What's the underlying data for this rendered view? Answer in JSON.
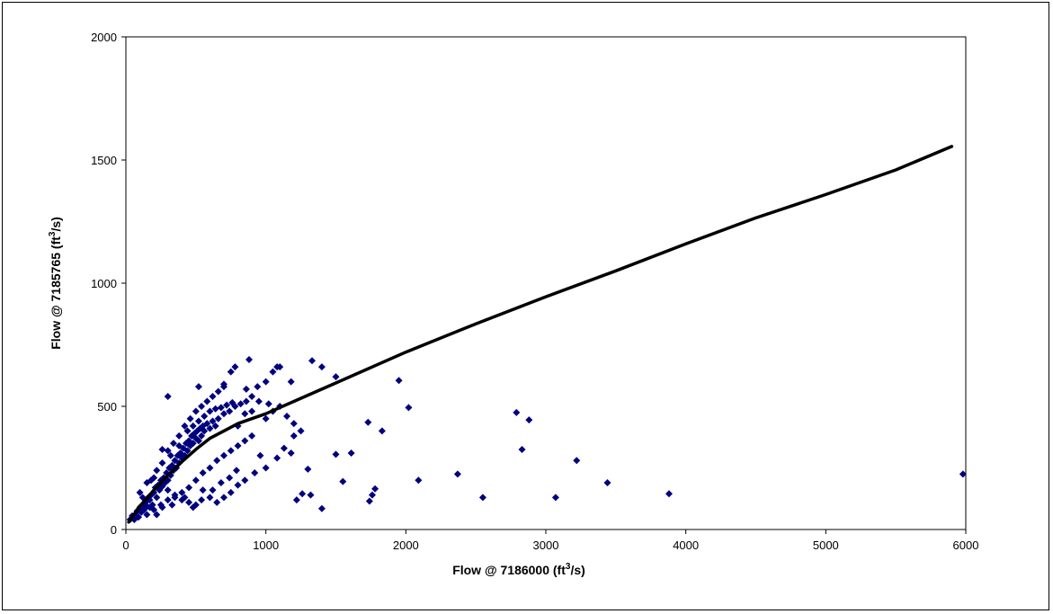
{
  "chart_data": {
    "type": "scatter",
    "title": "",
    "xlabel": {
      "before": "Flow @ 7186000 (ft",
      "sup": "3",
      "after": "/s)"
    },
    "ylabel": {
      "before": "Flow @ 7185765 (ft",
      "sup": "3",
      "after": "/s)"
    },
    "xlim": [
      0,
      6000
    ],
    "ylim": [
      0,
      2000
    ],
    "xticks": [
      0,
      1000,
      2000,
      3000,
      4000,
      5000,
      6000
    ],
    "yticks": [
      0,
      500,
      1000,
      1500,
      2000
    ],
    "grid": {
      "y_lines_at": [
        500
      ]
    },
    "legend": "none",
    "point_color": "#00007f",
    "curve_color": "#000000",
    "series": [
      {
        "kind": "points",
        "points": [
          [
            30,
            40
          ],
          [
            45,
            55
          ],
          [
            60,
            40
          ],
          [
            70,
            60
          ],
          [
            80,
            75
          ],
          [
            90,
            50
          ],
          [
            100,
            90
          ],
          [
            110,
            70
          ],
          [
            120,
            100
          ],
          [
            130,
            80
          ],
          [
            140,
            110
          ],
          [
            150,
            95
          ],
          [
            160,
            130
          ],
          [
            170,
            120
          ],
          [
            180,
            140
          ],
          [
            190,
            100
          ],
          [
            200,
            150
          ],
          [
            210,
            170
          ],
          [
            220,
            130
          ],
          [
            230,
            180
          ],
          [
            240,
            160
          ],
          [
            250,
            200
          ],
          [
            260,
            175
          ],
          [
            270,
            210
          ],
          [
            280,
            190
          ],
          [
            290,
            230
          ],
          [
            300,
            200
          ],
          [
            310,
            250
          ],
          [
            320,
            220
          ],
          [
            330,
            260
          ],
          [
            340,
            240
          ],
          [
            350,
            280
          ],
          [
            360,
            250
          ],
          [
            370,
            300
          ],
          [
            380,
            270
          ],
          [
            390,
            310
          ],
          [
            400,
            290
          ],
          [
            410,
            330
          ],
          [
            420,
            300
          ],
          [
            430,
            350
          ],
          [
            440,
            320
          ],
          [
            450,
            360
          ],
          [
            460,
            340
          ],
          [
            470,
            380
          ],
          [
            480,
            350
          ],
          [
            490,
            390
          ],
          [
            500,
            370
          ],
          [
            510,
            400
          ],
          [
            520,
            360
          ],
          [
            530,
            410
          ],
          [
            540,
            380
          ],
          [
            550,
            420
          ],
          [
            560,
            400
          ],
          [
            580,
            430
          ],
          [
            600,
            410
          ],
          [
            620,
            440
          ],
          [
            640,
            420
          ],
          [
            660,
            450
          ],
          [
            700,
            470
          ],
          [
            740,
            480
          ],
          [
            780,
            500
          ],
          [
            820,
            510
          ],
          [
            860,
            520
          ],
          [
            900,
            540
          ],
          [
            150,
            60
          ],
          [
            200,
            80
          ],
          [
            250,
            100
          ],
          [
            300,
            120
          ],
          [
            350,
            130
          ],
          [
            400,
            150
          ],
          [
            450,
            170
          ],
          [
            500,
            200
          ],
          [
            550,
            230
          ],
          [
            600,
            250
          ],
          [
            650,
            280
          ],
          [
            700,
            300
          ],
          [
            750,
            320
          ],
          [
            800,
            340
          ],
          [
            850,
            360
          ],
          [
            900,
            380
          ],
          [
            180,
            200
          ],
          [
            220,
            240
          ],
          [
            260,
            270
          ],
          [
            300,
            320
          ],
          [
            340,
            350
          ],
          [
            380,
            380
          ],
          [
            420,
            420
          ],
          [
            460,
            450
          ],
          [
            500,
            480
          ],
          [
            540,
            500
          ],
          [
            580,
            520
          ],
          [
            620,
            540
          ],
          [
            660,
            560
          ],
          [
            700,
            580
          ],
          [
            300,
            540
          ],
          [
            520,
            580
          ],
          [
            700,
            590
          ],
          [
            750,
            640
          ],
          [
            780,
            660
          ],
          [
            880,
            690
          ],
          [
            860,
            570
          ],
          [
            940,
            580
          ],
          [
            1000,
            600
          ],
          [
            1050,
            640
          ],
          [
            1100,
            660
          ],
          [
            1020,
            510
          ],
          [
            950,
            520
          ],
          [
            900,
            480
          ],
          [
            850,
            470
          ],
          [
            800,
            420
          ],
          [
            1000,
            450
          ],
          [
            1050,
            480
          ],
          [
            1100,
            500
          ],
          [
            1150,
            460
          ],
          [
            1200,
            380
          ],
          [
            1250,
            400
          ],
          [
            1180,
            310
          ],
          [
            1130,
            330
          ],
          [
            1080,
            290
          ],
          [
            1000,
            250
          ],
          [
            960,
            300
          ],
          [
            920,
            230
          ],
          [
            850,
            200
          ],
          [
            800,
            180
          ],
          [
            750,
            150
          ],
          [
            700,
            130
          ],
          [
            650,
            110
          ],
          [
            600,
            130
          ],
          [
            550,
            160
          ],
          [
            500,
            100
          ],
          [
            450,
            110
          ],
          [
            400,
            120
          ],
          [
            350,
            140
          ],
          [
            300,
            160
          ],
          [
            250,
            180
          ],
          [
            200,
            210
          ],
          [
            150,
            190
          ],
          [
            100,
            150
          ],
          [
            120,
            130
          ],
          [
            170,
            90
          ],
          [
            220,
            60
          ],
          [
            260,
            90
          ],
          [
            330,
            100
          ],
          [
            420,
            130
          ],
          [
            480,
            90
          ],
          [
            540,
            120
          ],
          [
            620,
            160
          ],
          [
            680,
            190
          ],
          [
            740,
            210
          ],
          [
            790,
            240
          ],
          [
            1330,
            685
          ],
          [
            1400,
            660
          ],
          [
            1500,
            620
          ],
          [
            1950,
            605
          ],
          [
            1180,
            600
          ],
          [
            1080,
            660
          ],
          [
            1200,
            430
          ],
          [
            1300,
            245
          ],
          [
            1320,
            140
          ],
          [
            1260,
            145
          ],
          [
            1220,
            120
          ],
          [
            1400,
            85
          ],
          [
            1500,
            305
          ],
          [
            1550,
            195
          ],
          [
            1610,
            310
          ],
          [
            1730,
            435
          ],
          [
            1760,
            140
          ],
          [
            1780,
            165
          ],
          [
            1740,
            115
          ],
          [
            1830,
            400
          ],
          [
            2020,
            495
          ],
          [
            2090,
            200
          ],
          [
            2370,
            225
          ],
          [
            2550,
            130
          ],
          [
            2790,
            475
          ],
          [
            2880,
            445
          ],
          [
            2830,
            325
          ],
          [
            3070,
            130
          ],
          [
            3220,
            280
          ],
          [
            3440,
            190
          ],
          [
            3880,
            145
          ],
          [
            5980,
            225
          ],
          [
            260,
            325
          ],
          [
            320,
            300
          ],
          [
            380,
            340
          ],
          [
            440,
            400
          ],
          [
            480,
            420
          ],
          [
            520,
            440
          ],
          [
            560,
            460
          ],
          [
            600,
            480
          ],
          [
            640,
            490
          ],
          [
            680,
            495
          ],
          [
            720,
            505
          ],
          [
            760,
            515
          ]
        ]
      },
      {
        "kind": "curve",
        "points": [
          [
            20,
            30
          ],
          [
            100,
            95
          ],
          [
            200,
            160
          ],
          [
            300,
            220
          ],
          [
            400,
            275
          ],
          [
            500,
            325
          ],
          [
            600,
            370
          ],
          [
            800,
            430
          ],
          [
            1000,
            470
          ],
          [
            1200,
            520
          ],
          [
            1500,
            595
          ],
          [
            2000,
            720
          ],
          [
            2500,
            835
          ],
          [
            3000,
            945
          ],
          [
            3500,
            1050
          ],
          [
            4000,
            1160
          ],
          [
            4500,
            1265
          ],
          [
            5000,
            1360
          ],
          [
            5500,
            1460
          ],
          [
            5900,
            1555
          ]
        ]
      }
    ]
  }
}
